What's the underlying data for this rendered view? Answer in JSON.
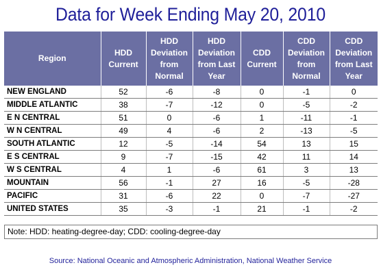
{
  "title": "Data for Week Ending May 20, 2010",
  "headers": [
    "Region",
    "HDD Current",
    "HDD Deviation from Normal",
    "HDD Deviation from Last Year",
    "CDD Current",
    "CDD Deviation from Normal",
    "CDD Deviation from Last Year"
  ],
  "header_lines": [
    [
      "Region"
    ],
    [
      "HDD",
      "Current"
    ],
    [
      "HDD",
      "Deviation",
      "from",
      "Normal"
    ],
    [
      "HDD",
      "Deviation",
      "from Last",
      "Year"
    ],
    [
      "CDD",
      "Current"
    ],
    [
      "CDD",
      "Deviation",
      "from",
      "Normal"
    ],
    [
      "CDD",
      "Deviation",
      "from Last",
      "Year"
    ]
  ],
  "rows": [
    [
      "NEW ENGLAND",
      "52",
      "-6",
      "-8",
      "0",
      "-1",
      "0"
    ],
    [
      "MIDDLE ATLANTIC",
      "38",
      "-7",
      "-12",
      "0",
      "-5",
      "-2"
    ],
    [
      "E N CENTRAL",
      "51",
      "0",
      "-6",
      "1",
      "-11",
      "-1"
    ],
    [
      "W N CENTRAL",
      "49",
      "4",
      "-6",
      "2",
      "-13",
      "-5"
    ],
    [
      "SOUTH ATLANTIC",
      "12",
      "-5",
      "-14",
      "54",
      "13",
      "15"
    ],
    [
      "E S CENTRAL",
      "9",
      "-7",
      "-15",
      "42",
      "11",
      "14"
    ],
    [
      "W S CENTRAL",
      "4",
      "1",
      "-6",
      "61",
      "3",
      "13"
    ],
    [
      "MOUNTAIN",
      "56",
      "-1",
      "27",
      "16",
      "-5",
      "-28"
    ],
    [
      "PACIFIC",
      "31",
      "-6",
      "22",
      "0",
      "-7",
      "-27"
    ],
    [
      "UNITED STATES",
      "35",
      "-3",
      "-1",
      "21",
      "-1",
      "-2"
    ]
  ],
  "note": "Note: HDD: heating-degree-day; CDD: cooling-degree-day",
  "source": "Source:  National Oceanic and Atmospheric Administration, National Weather Service",
  "colors": {
    "title": "#1f1f99",
    "header_bg": "#6b6fa3",
    "header_text": "#ffffff",
    "source": "#1f1f99"
  }
}
